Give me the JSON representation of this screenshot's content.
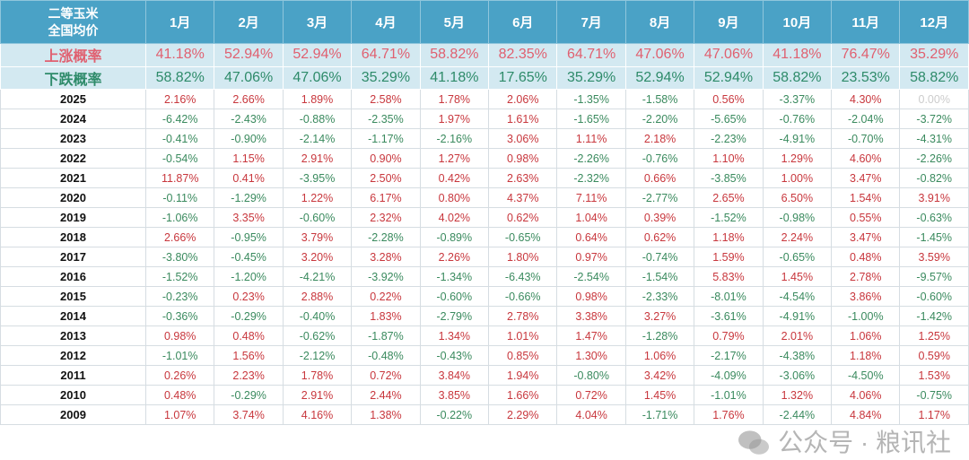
{
  "header": {
    "corner": [
      "二等玉米",
      "全国均价"
    ],
    "months": [
      "1月",
      "2月",
      "3月",
      "4月",
      "5月",
      "6月",
      "7月",
      "8月",
      "9月",
      "10月",
      "11月",
      "12月"
    ]
  },
  "up": {
    "label": "上涨概率",
    "values": [
      "41.18%",
      "52.94%",
      "52.94%",
      "64.71%",
      "58.82%",
      "82.35%",
      "64.71%",
      "47.06%",
      "47.06%",
      "41.18%",
      "76.47%",
      "35.29%"
    ]
  },
  "down": {
    "label": "下跌概率",
    "values": [
      "58.82%",
      "47.06%",
      "47.06%",
      "35.29%",
      "41.18%",
      "17.65%",
      "35.29%",
      "52.94%",
      "52.94%",
      "58.82%",
      "23.53%",
      "58.82%"
    ]
  },
  "rows": [
    {
      "year": "2025",
      "values": [
        "2.16%",
        "2.66%",
        "1.89%",
        "2.58%",
        "1.78%",
        "2.06%",
        "-1.35%",
        "-1.58%",
        "0.56%",
        "-3.37%",
        "4.30%",
        "0.00%"
      ]
    },
    {
      "year": "2024",
      "values": [
        "-6.42%",
        "-2.43%",
        "-0.88%",
        "-2.35%",
        "1.97%",
        "1.61%",
        "-1.65%",
        "-2.20%",
        "-5.65%",
        "-0.76%",
        "-2.04%",
        "-3.72%"
      ]
    },
    {
      "year": "2023",
      "values": [
        "-0.41%",
        "-0.90%",
        "-2.14%",
        "-1.17%",
        "-2.16%",
        "3.06%",
        "1.11%",
        "2.18%",
        "-2.23%",
        "-4.91%",
        "-0.70%",
        "-4.31%"
      ]
    },
    {
      "year": "2022",
      "values": [
        "-0.54%",
        "1.15%",
        "2.91%",
        "0.90%",
        "1.27%",
        "0.98%",
        "-2.26%",
        "-0.76%",
        "1.10%",
        "1.29%",
        "4.60%",
        "-2.26%"
      ]
    },
    {
      "year": "2021",
      "values": [
        "11.87%",
        "0.41%",
        "-3.95%",
        "2.50%",
        "0.42%",
        "2.63%",
        "-2.32%",
        "0.66%",
        "-3.85%",
        "1.00%",
        "3.47%",
        "-0.82%"
      ]
    },
    {
      "year": "2020",
      "values": [
        "-0.11%",
        "-1.29%",
        "1.22%",
        "6.17%",
        "0.80%",
        "4.37%",
        "7.11%",
        "-2.77%",
        "2.65%",
        "6.50%",
        "1.54%",
        "3.91%"
      ]
    },
    {
      "year": "2019",
      "values": [
        "-1.06%",
        "3.35%",
        "-0.60%",
        "2.32%",
        "4.02%",
        "0.62%",
        "1.04%",
        "0.39%",
        "-1.52%",
        "-0.98%",
        "0.55%",
        "-0.63%"
      ]
    },
    {
      "year": "2018",
      "values": [
        "2.66%",
        "-0.95%",
        "3.79%",
        "-2.28%",
        "-0.89%",
        "-0.65%",
        "0.64%",
        "0.62%",
        "1.18%",
        "2.24%",
        "3.47%",
        "-1.45%"
      ]
    },
    {
      "year": "2017",
      "values": [
        "-3.80%",
        "-0.45%",
        "3.20%",
        "3.28%",
        "2.26%",
        "1.80%",
        "0.97%",
        "-0.74%",
        "1.59%",
        "-0.65%",
        "0.48%",
        "3.59%"
      ]
    },
    {
      "year": "2016",
      "values": [
        "-1.52%",
        "-1.20%",
        "-4.21%",
        "-3.92%",
        "-1.34%",
        "-6.43%",
        "-2.54%",
        "-1.54%",
        "5.83%",
        "1.45%",
        "2.78%",
        "-9.57%"
      ]
    },
    {
      "year": "2015",
      "values": [
        "-0.23%",
        "0.23%",
        "2.88%",
        "0.22%",
        "-0.60%",
        "-0.66%",
        "0.98%",
        "-2.33%",
        "-8.01%",
        "-4.54%",
        "3.86%",
        "-0.60%"
      ]
    },
    {
      "year": "2014",
      "values": [
        "-0.36%",
        "-0.29%",
        "-0.40%",
        "1.83%",
        "-2.79%",
        "2.78%",
        "3.38%",
        "3.27%",
        "-3.61%",
        "-4.91%",
        "-1.00%",
        "-1.42%"
      ]
    },
    {
      "year": "2013",
      "values": [
        "0.98%",
        "0.48%",
        "-0.62%",
        "-1.87%",
        "1.34%",
        "1.01%",
        "1.47%",
        "-1.28%",
        "0.79%",
        "2.01%",
        "1.06%",
        "1.25%"
      ]
    },
    {
      "year": "2012",
      "values": [
        "-1.01%",
        "1.56%",
        "-2.12%",
        "-0.48%",
        "-0.43%",
        "0.85%",
        "1.30%",
        "1.06%",
        "-2.17%",
        "-4.38%",
        "1.18%",
        "0.59%"
      ]
    },
    {
      "year": "2011",
      "values": [
        "0.26%",
        "2.23%",
        "1.78%",
        "0.72%",
        "3.84%",
        "1.94%",
        "-0.80%",
        "3.42%",
        "-4.09%",
        "-3.06%",
        "-4.50%",
        "1.53%"
      ]
    },
    {
      "year": "2010",
      "values": [
        "0.48%",
        "-0.29%",
        "2.91%",
        "2.44%",
        "3.85%",
        "1.66%",
        "0.72%",
        "1.45%",
        "-1.01%",
        "1.32%",
        "4.06%",
        "-0.75%"
      ]
    },
    {
      "year": "2009",
      "values": [
        "1.07%",
        "3.74%",
        "4.16%",
        "1.38%",
        "-0.22%",
        "2.29%",
        "4.04%",
        "-1.71%",
        "1.76%",
        "-2.44%",
        "4.84%",
        "1.17%"
      ]
    }
  ],
  "watermark": "公众号 · 粮讯社",
  "colors": {
    "header_bg": "#4aa2c6",
    "prob_bg": "#d3e9f1",
    "positive": "#c8373d",
    "negative": "#3a8a5e",
    "up_label": "#e06070",
    "down_label": "#2e8b6a"
  }
}
